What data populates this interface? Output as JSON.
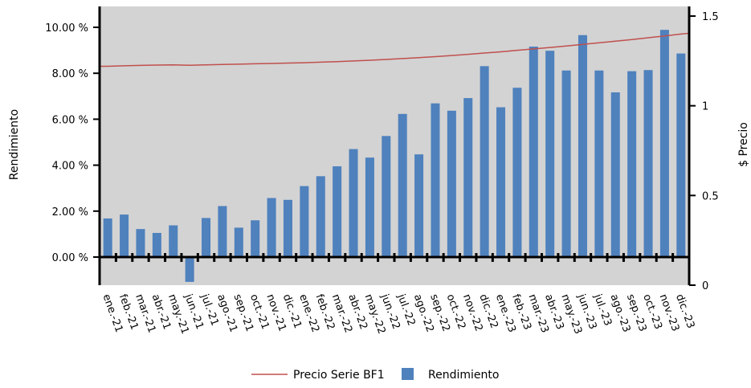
{
  "chart_data": {
    "type": "bar",
    "categories": [
      "ene.-21",
      "feb.-21",
      "mar.-21",
      "abr.-21",
      "may.-21",
      "jun.-21",
      "jul.-21",
      "ago.-21",
      "sep.-21",
      "oct.-21",
      "nov.-21",
      "dic.-21",
      "ene.-22",
      "feb.-22",
      "mar.-22",
      "abr.-22",
      "may.-22",
      "jun.-22",
      "jul.-22",
      "ago.-22",
      "sep.-22",
      "oct.-22",
      "nov.-22",
      "dic.-22",
      "ene.-23",
      "feb.-23",
      "mar.-23",
      "abr.-23",
      "may.-23",
      "jun.-23",
      "jul.-23",
      "ago.-23",
      "sep.-23",
      "oct.-23",
      "nov.-23",
      "dic.-23"
    ],
    "series": [
      {
        "name": "Rendimiento",
        "axis": "left",
        "type": "bar",
        "color": "#4f81bd",
        "values": [
          1.68,
          1.85,
          1.22,
          1.05,
          1.38,
          -1.08,
          1.7,
          2.22,
          1.28,
          1.6,
          2.57,
          2.49,
          3.09,
          3.52,
          3.95,
          4.7,
          4.33,
          5.27,
          6.23,
          4.47,
          6.69,
          6.37,
          6.92,
          8.31,
          6.52,
          7.37,
          9.16,
          8.98,
          8.12,
          9.66,
          8.12,
          7.17,
          8.09,
          8.14,
          9.89,
          8.86
        ]
      },
      {
        "name": "Precio Serie BF1",
        "axis": "right",
        "type": "line",
        "color": "#c0504d",
        "values": [
          1.22,
          1.223,
          1.225,
          1.227,
          1.228,
          1.226,
          1.228,
          1.23,
          1.232,
          1.234,
          1.236,
          1.238,
          1.24,
          1.243,
          1.246,
          1.25,
          1.254,
          1.258,
          1.263,
          1.268,
          1.274,
          1.28,
          1.287,
          1.294,
          1.301,
          1.309,
          1.317,
          1.325,
          1.333,
          1.342,
          1.351,
          1.36,
          1.369,
          1.379,
          1.389,
          1.4
        ]
      }
    ],
    "ylabel_left": "Rendimiento",
    "ylabel_right": "$ Precio",
    "ylim_left": [
      -1.2,
      10.8
    ],
    "ylim_right": [
      0,
      1.5
    ],
    "yticks_left": [
      "0.00 %",
      "2.00 %",
      "4.00 %",
      "6.00 %",
      "8.00 %",
      "10.00 %"
    ],
    "yticks_left_values": [
      0,
      2,
      4,
      6,
      8,
      10
    ],
    "yticks_right": [
      "0",
      "0.5",
      "1",
      "1.5"
    ],
    "yticks_right_values": [
      0,
      0.5,
      1,
      1.5
    ],
    "grid": false,
    "legend_position": "bottom-center",
    "plot_background": "#d3d3d3"
  },
  "legend": {
    "line_label": "Precio Serie BF1",
    "bar_label": "Rendimiento"
  },
  "axes": {
    "left_title": "Rendimiento",
    "right_title": "$ Precio"
  }
}
